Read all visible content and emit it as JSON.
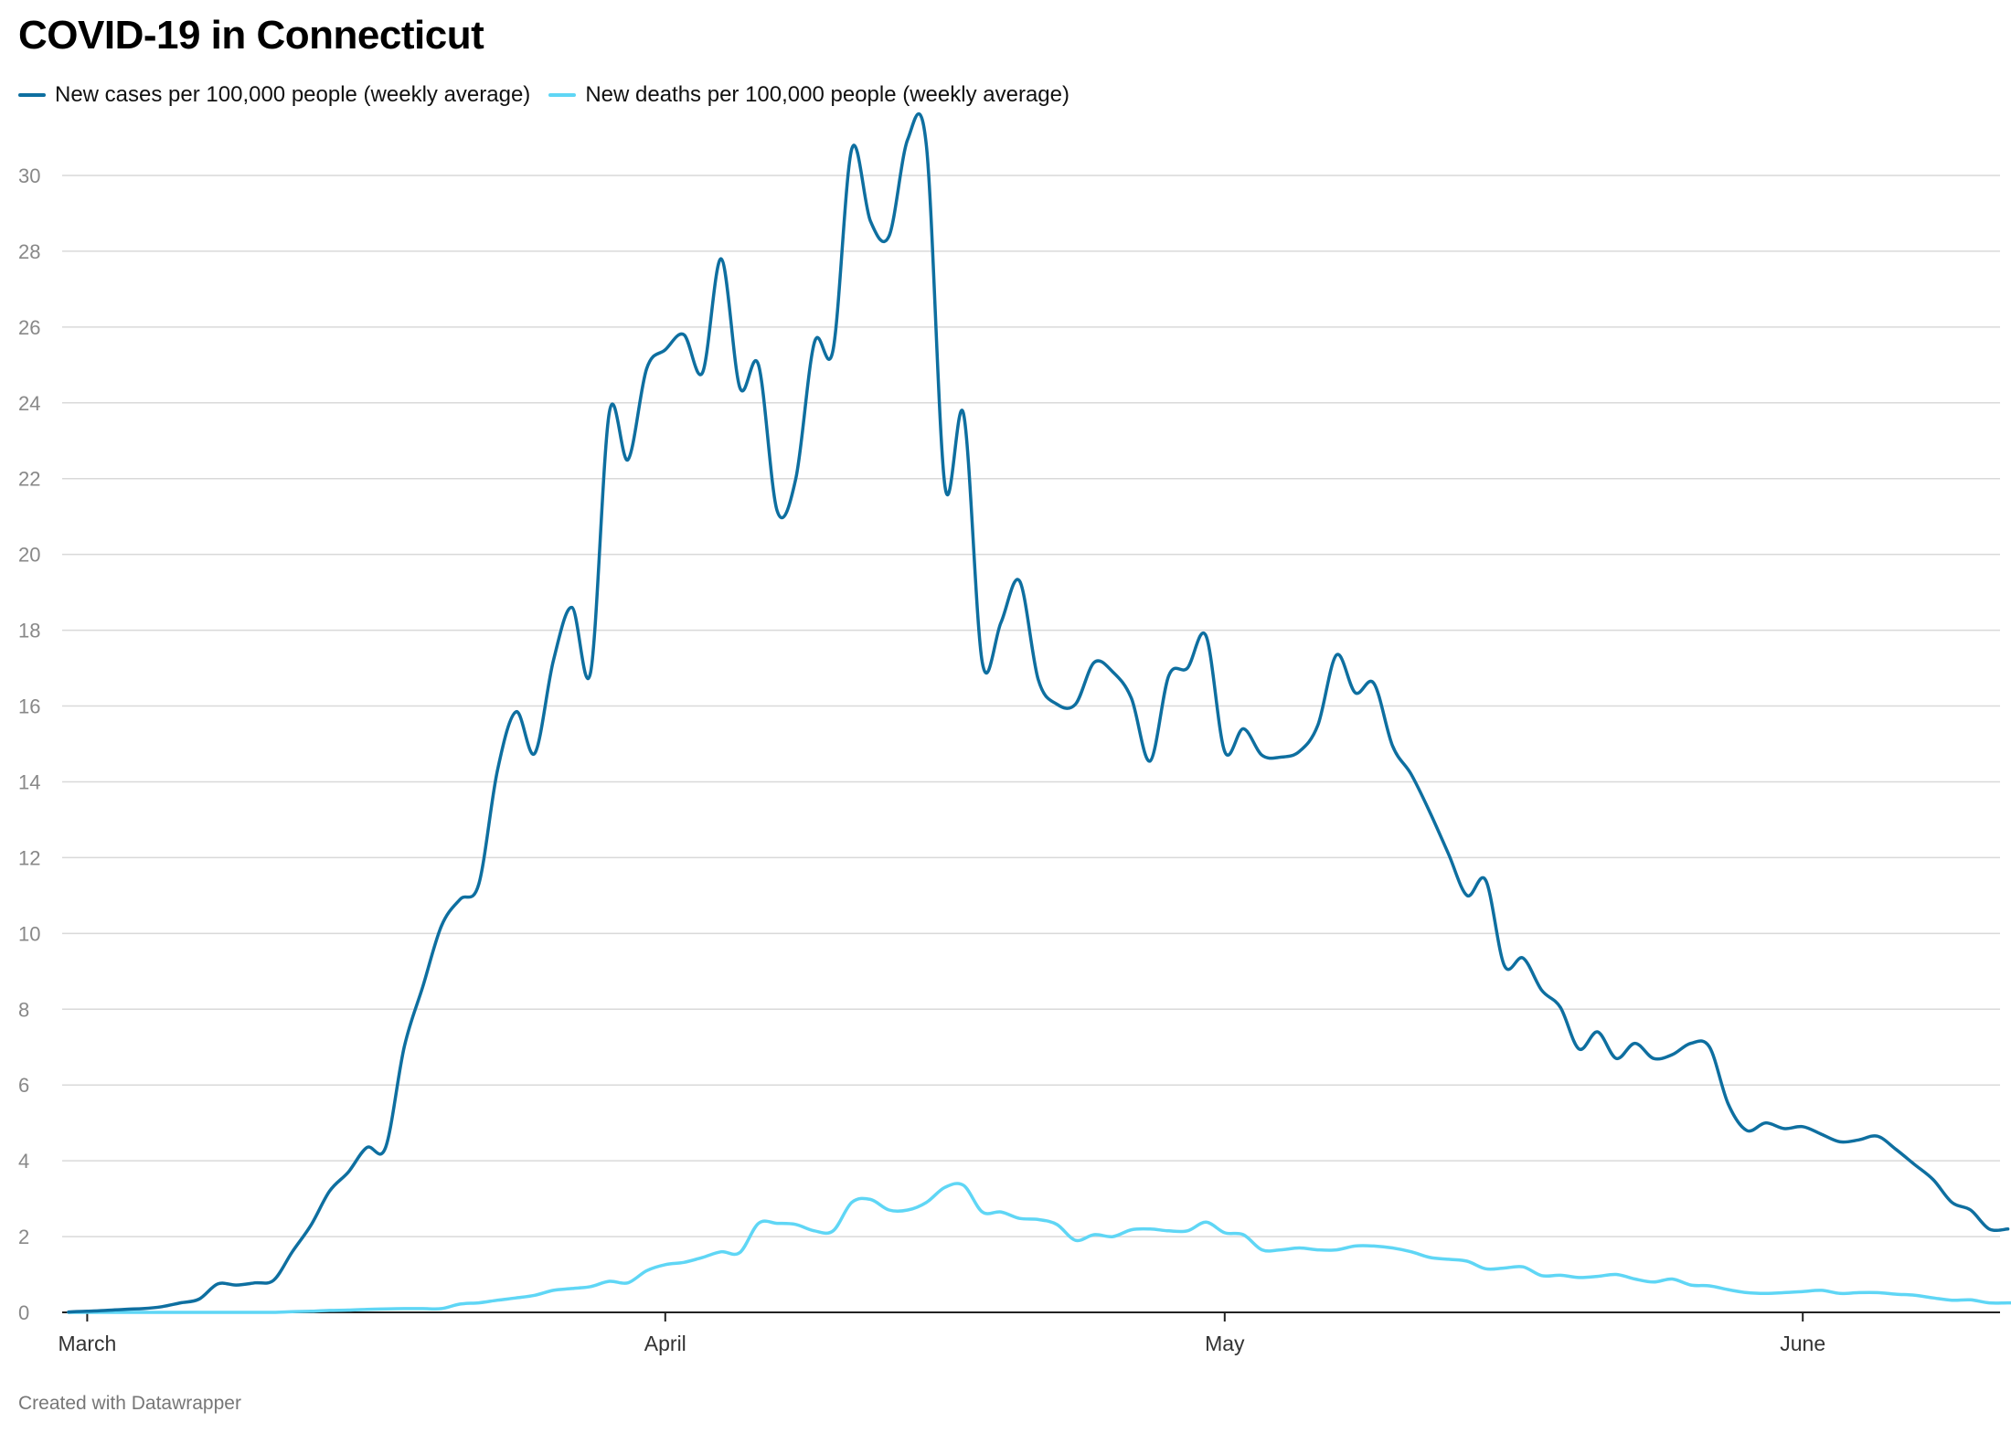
{
  "title": "COVID-19 in Connecticut",
  "footer": "Created with Datawrapper",
  "chart_data": {
    "type": "line",
    "title": "COVID-19 in Connecticut",
    "xlabel": "",
    "ylabel": "",
    "ylim": [
      0,
      31
    ],
    "yticks": [
      0,
      2,
      4,
      6,
      8,
      10,
      12,
      14,
      16,
      18,
      20,
      22,
      24,
      26,
      28,
      30
    ],
    "xticks": [
      "March",
      "April",
      "May",
      "June"
    ],
    "grid": true,
    "legend_position": "top-left",
    "x_start": "2020-02-29",
    "x_unit": "day",
    "series": [
      {
        "name": "New cases per 100,000 people (weekly average)",
        "color": "#0e6fa0",
        "values": [
          0.01,
          0.03,
          0.05,
          0.08,
          0.1,
          0.15,
          0.25,
          0.35,
          0.75,
          0.72,
          0.78,
          0.85,
          1.6,
          2.3,
          3.2,
          3.7,
          4.35,
          4.35,
          7.0,
          8.6,
          10.2,
          10.9,
          11.3,
          14.3,
          15.85,
          14.75,
          17.2,
          18.6,
          16.9,
          23.75,
          22.5,
          24.9,
          25.4,
          25.8,
          24.8,
          27.8,
          24.4,
          25.0,
          21.15,
          22.0,
          25.6,
          25.4,
          30.7,
          28.8,
          28.4,
          30.95,
          30.8,
          21.8,
          23.7,
          17.15,
          18.2,
          19.3,
          16.7,
          16.05,
          16.05,
          17.15,
          16.9,
          16.2,
          14.55,
          16.8,
          17.0,
          17.85,
          14.8,
          15.4,
          14.7,
          14.65,
          14.8,
          15.5,
          17.35,
          16.35,
          16.6,
          14.95,
          14.2,
          13.2,
          12.1,
          11.0,
          11.4,
          9.15,
          9.35,
          8.5,
          8.05,
          6.95,
          7.4,
          6.7,
          7.1,
          6.7,
          6.8,
          7.1,
          7.0,
          5.5,
          4.8,
          5.0,
          4.85,
          4.9,
          4.7,
          4.5,
          4.55,
          4.65,
          4.3,
          3.9,
          3.5,
          2.9,
          2.7,
          2.2,
          2.2
        ]
      },
      {
        "name": "New deaths per 100,000 people (weekly average)",
        "color": "#5fd6f5",
        "values": [
          0,
          0,
          0,
          0,
          0,
          0,
          0,
          0,
          0,
          0,
          0,
          0,
          0.02,
          0.03,
          0.05,
          0.06,
          0.08,
          0.09,
          0.1,
          0.1,
          0.1,
          0.22,
          0.25,
          0.32,
          0.38,
          0.45,
          0.58,
          0.63,
          0.68,
          0.82,
          0.78,
          1.1,
          1.26,
          1.32,
          1.45,
          1.6,
          1.58,
          2.35,
          2.35,
          2.32,
          2.15,
          2.15,
          2.9,
          2.98,
          2.7,
          2.7,
          2.9,
          3.3,
          3.35,
          2.65,
          2.65,
          2.48,
          2.45,
          2.32,
          1.9,
          2.05,
          2.0,
          2.18,
          2.2,
          2.15,
          2.15,
          2.38,
          2.1,
          2.05,
          1.65,
          1.65,
          1.7,
          1.65,
          1.65,
          1.75,
          1.75,
          1.7,
          1.6,
          1.45,
          1.4,
          1.35,
          1.15,
          1.17,
          1.2,
          0.97,
          0.98,
          0.92,
          0.95,
          1.0,
          0.88,
          0.8,
          0.88,
          0.72,
          0.7,
          0.6,
          0.52,
          0.5,
          0.52,
          0.55,
          0.58,
          0.5,
          0.52,
          0.52,
          0.48,
          0.45,
          0.38,
          0.32,
          0.33,
          0.25,
          0.25,
          0.25,
          0.28
        ]
      }
    ]
  }
}
